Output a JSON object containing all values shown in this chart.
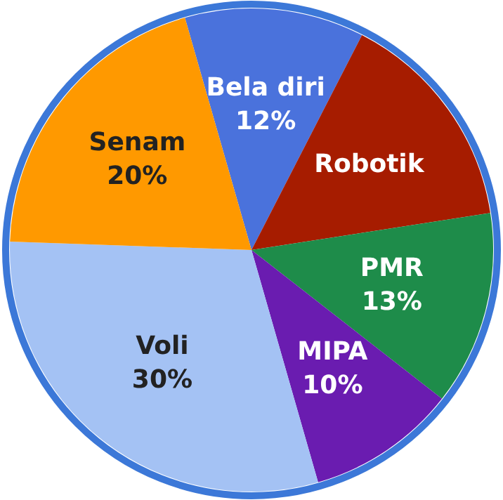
{
  "chart_data": {
    "type": "pie",
    "categories": [
      "Bela diri",
      "Robotik",
      "PMR",
      "MIPA",
      "Voli",
      "Senam"
    ],
    "values": [
      12,
      15,
      13,
      10,
      30,
      20
    ],
    "value_labels": [
      "12%",
      null,
      "13%",
      "10%",
      "30%",
      "20%"
    ],
    "colors": [
      "#4a72dc",
      "#a61c00",
      "#1e8c4a",
      "#6a1cb0",
      "#a4c2f4",
      "#ff9900"
    ],
    "legend": false
  }
}
